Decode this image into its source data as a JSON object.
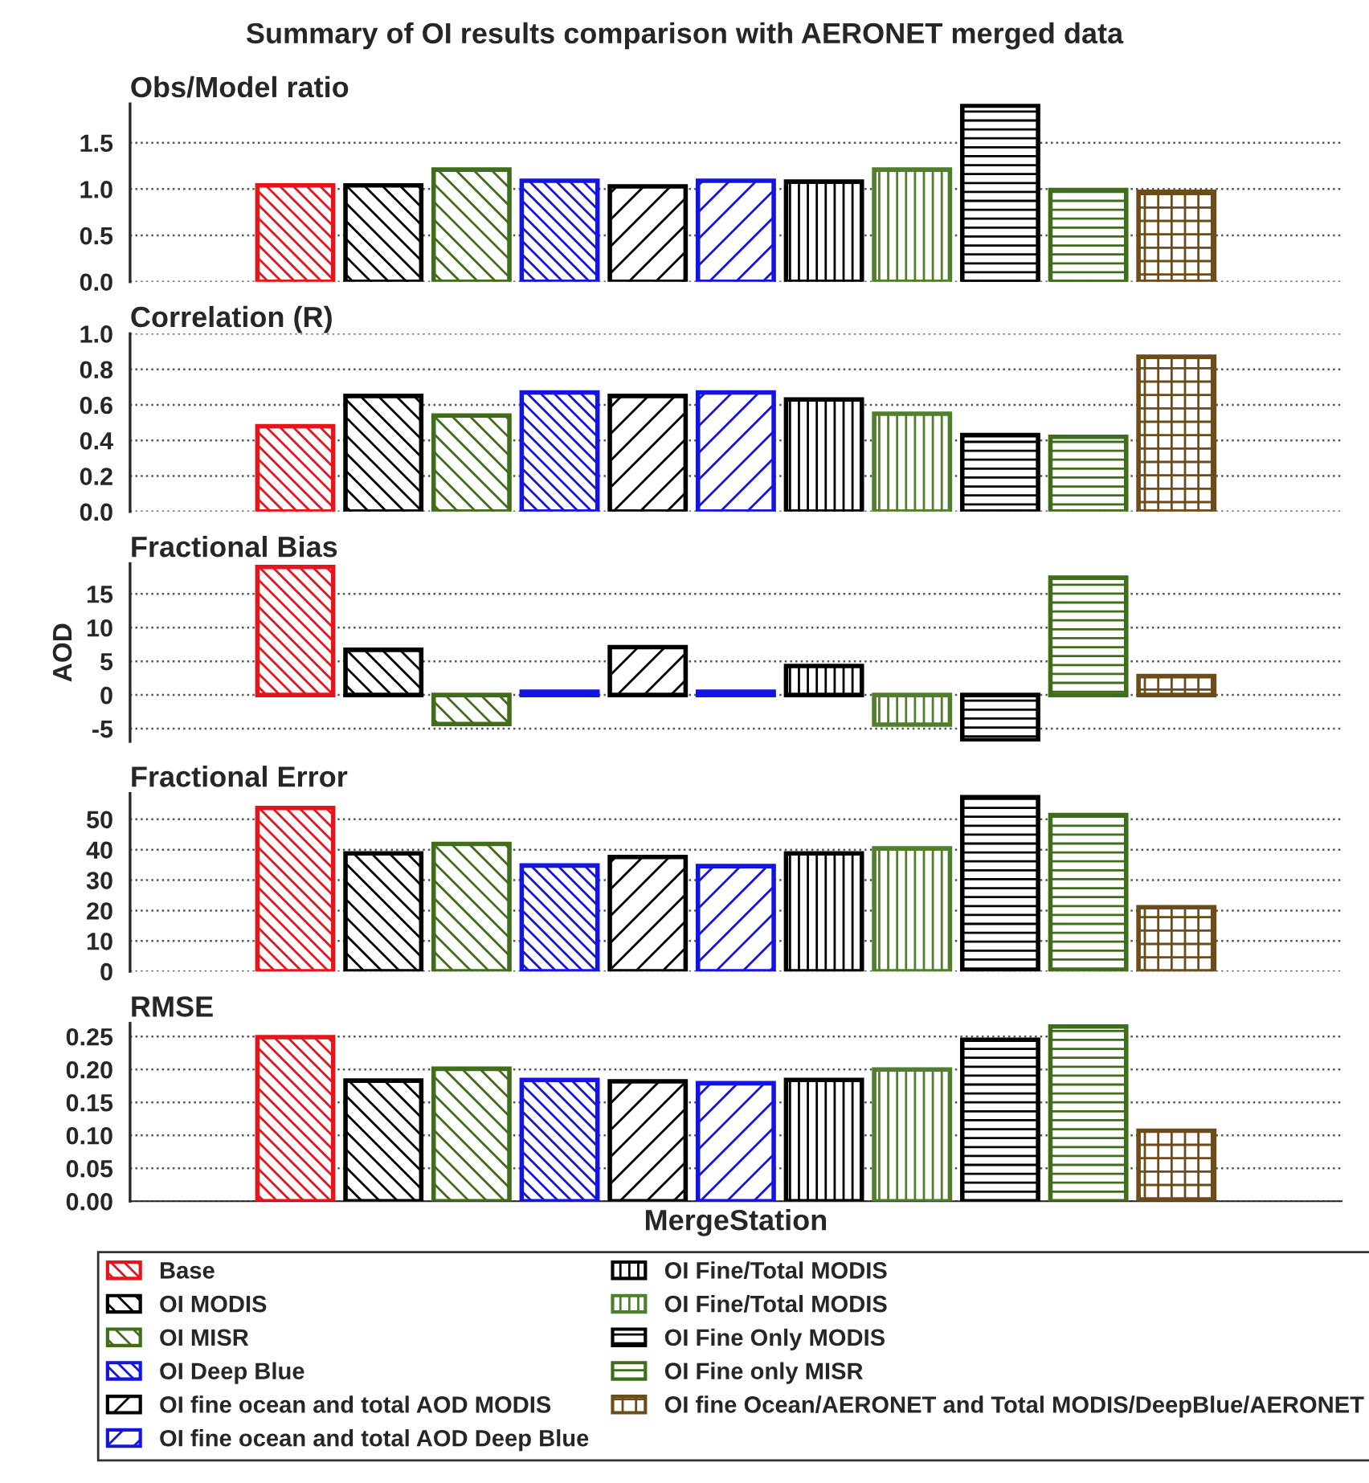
{
  "chart_data": [
    {
      "type": "bar",
      "title": "Summary of OI results comparison with AERONET merged data",
      "subtitle": "Obs/Model ratio",
      "categories": [
        null
      ],
      "ylim": [
        0,
        1.92
      ],
      "yticks": [
        {
          "value": 0,
          "label": "0.0"
        },
        {
          "value": 0.5,
          "label": "0.5"
        },
        {
          "value": 1,
          "label": "1.0"
        },
        {
          "value": 1.5,
          "label": "1.5"
        }
      ],
      "grid": "y",
      "series": [
        {
          "color": "#e8141c",
          "values": [
            1.04
          ]
        },
        {
          "color": "#000000",
          "values": [
            1.04
          ]
        },
        {
          "color": "#3f6d1a",
          "values": [
            1.21
          ]
        },
        {
          "color": "#1414e0",
          "values": [
            1.09
          ]
        },
        {
          "color": "#000000",
          "values": [
            1.03
          ]
        },
        {
          "color": "#1414e0",
          "values": [
            1.09
          ]
        },
        {
          "color": "#000000",
          "values": [
            1.08
          ]
        },
        {
          "color": "#4f7f2a",
          "values": [
            1.21
          ]
        },
        {
          "color": "#000000",
          "values": [
            1.9
          ]
        },
        {
          "color": "#3f6d1a",
          "values": [
            0.99
          ]
        },
        {
          "color": "#6b4c1a",
          "values": [
            0.97
          ]
        }
      ]
    },
    {
      "type": "bar",
      "title": "Correlation (R)",
      "categories": [
        null
      ],
      "ylim": [
        0,
        1.0
      ],
      "yticks": [
        {
          "value": 0,
          "label": "0.0"
        },
        {
          "value": 0.2,
          "label": "0.2"
        },
        {
          "value": 0.4,
          "label": "0.4"
        },
        {
          "value": 0.6,
          "label": "0.6"
        },
        {
          "value": 0.8,
          "label": "0.8"
        },
        {
          "value": 1,
          "label": "1.0"
        }
      ],
      "grid": "y",
      "series": [
        {
          "color": "#e8141c",
          "values": [
            0.48
          ]
        },
        {
          "color": "#000000",
          "values": [
            0.65
          ]
        },
        {
          "color": "#3f6d1a",
          "values": [
            0.54
          ]
        },
        {
          "color": "#1414e0",
          "values": [
            0.67
          ]
        },
        {
          "color": "#000000",
          "values": [
            0.65
          ]
        },
        {
          "color": "#1414e0",
          "values": [
            0.67
          ]
        },
        {
          "color": "#000000",
          "values": [
            0.63
          ]
        },
        {
          "color": "#4f7f2a",
          "values": [
            0.55
          ]
        },
        {
          "color": "#000000",
          "values": [
            0.43
          ]
        },
        {
          "color": "#3f6d1a",
          "values": [
            0.42
          ]
        },
        {
          "color": "#6b4c1a",
          "values": [
            0.87
          ]
        }
      ]
    },
    {
      "type": "bar",
      "title": "Fractional Bias",
      "ylabel": "AOD",
      "categories": [
        null
      ],
      "ylim": [
        -6.9,
        19.5
      ],
      "yticks": [
        {
          "value": -5,
          "label": "-5"
        },
        0,
        5,
        10,
        15
      ],
      "grid": "y",
      "series": [
        {
          "color": "#e8141c",
          "values": [
            19.0
          ]
        },
        {
          "color": "#000000",
          "values": [
            6.7
          ]
        },
        {
          "color": "#3f6d1a",
          "values": [
            -4.3
          ]
        },
        {
          "color": "#1414e0",
          "values": [
            0.5
          ]
        },
        {
          "color": "#000000",
          "values": [
            7.1
          ]
        },
        {
          "color": "#1414e0",
          "values": [
            0.5
          ]
        },
        {
          "color": "#000000",
          "values": [
            4.3
          ]
        },
        {
          "color": "#4f7f2a",
          "values": [
            -4.4
          ]
        },
        {
          "color": "#000000",
          "values": [
            -6.7
          ]
        },
        {
          "color": "#3f6d1a",
          "values": [
            17.4
          ]
        },
        {
          "color": "#6b4c1a",
          "values": [
            2.8
          ]
        }
      ]
    },
    {
      "type": "bar",
      "title": "Fractional Error",
      "categories": [
        null
      ],
      "ylim": [
        0,
        58.5
      ],
      "yticks": [
        0,
        10,
        20,
        30,
        40,
        50
      ],
      "grid": "y",
      "series": [
        {
          "color": "#e8141c",
          "values": [
            53.7
          ]
        },
        {
          "color": "#000000",
          "values": [
            38.8
          ]
        },
        {
          "color": "#3f6d1a",
          "values": [
            41.9
          ]
        },
        {
          "color": "#1414e0",
          "values": [
            34.8
          ]
        },
        {
          "color": "#000000",
          "values": [
            37.6
          ]
        },
        {
          "color": "#1414e0",
          "values": [
            34.6
          ]
        },
        {
          "color": "#000000",
          "values": [
            38.8
          ]
        },
        {
          "color": "#4f7f2a",
          "values": [
            40.4
          ]
        },
        {
          "color": "#000000",
          "values": [
            57.3
          ]
        },
        {
          "color": "#3f6d1a",
          "values": [
            51.4
          ]
        },
        {
          "color": "#6b4c1a",
          "values": [
            21.1
          ]
        }
      ]
    },
    {
      "type": "bar",
      "title": "RMSE",
      "categories": [
        "MergeStation"
      ],
      "ylim": [
        0,
        0.27
      ],
      "yticks": [
        {
          "value": 0,
          "label": "0.00"
        },
        {
          "value": 0.05,
          "label": "0.05"
        },
        {
          "value": 0.1,
          "label": "0.10"
        },
        {
          "value": 0.15,
          "label": "0.15"
        },
        {
          "value": 0.2,
          "label": "0.20"
        },
        {
          "value": 0.25,
          "label": "0.25"
        }
      ],
      "grid": "y",
      "legend": "bottom",
      "series": [
        {
          "name": "Base",
          "color": "#e8141c",
          "values": [
            0.249
          ]
        },
        {
          "name": "OI MODIS",
          "color": "#000000",
          "values": [
            0.183
          ]
        },
        {
          "name": "OI MISR",
          "color": "#3f6d1a",
          "values": [
            0.201
          ]
        },
        {
          "name": "OI Deep Blue",
          "color": "#1414e0",
          "values": [
            0.184
          ]
        },
        {
          "name": "OI fine ocean and total AOD MODIS",
          "color": "#000000",
          "values": [
            0.182
          ]
        },
        {
          "name": "OI fine ocean and total AOD Deep Blue",
          "color": "#1414e0",
          "values": [
            0.179
          ]
        },
        {
          "name": "OI Fine/Total MODIS",
          "color": "#000000",
          "values": [
            0.184
          ]
        },
        {
          "name": "OI Fine/Total MODIS",
          "color": "#4f7f2a",
          "values": [
            0.2
          ]
        },
        {
          "name": "OI Fine Only MODIS",
          "color": "#000000",
          "values": [
            0.245
          ]
        },
        {
          "name": "OI Fine only MISR",
          "color": "#3f6d1a",
          "values": [
            0.265
          ]
        },
        {
          "name": "OI fine Ocean/AERONET and Total MODIS/DeepBlue/AERONET",
          "color": "#6b4c1a",
          "values": [
            0.107
          ]
        }
      ]
    }
  ]
}
